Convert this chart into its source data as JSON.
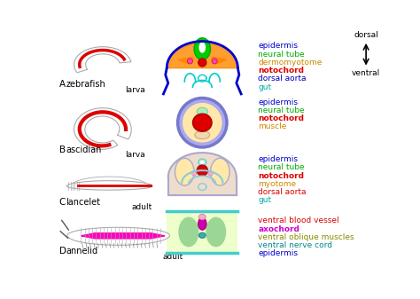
{
  "bg_color": "#ffffff",
  "legend_groups": [
    {
      "items": [
        {
          "text": "epidermis",
          "color": "#0000cc",
          "bold": false
        },
        {
          "text": "neural tube",
          "color": "#00aa00",
          "bold": false
        },
        {
          "text": "dermomyotome",
          "color": "#cc8800",
          "bold": false
        },
        {
          "text": "notochord",
          "color": "#dd0000",
          "bold": true
        },
        {
          "text": "dorsal aorta",
          "color": "#0000bb",
          "bold": false
        },
        {
          "text": "gut",
          "color": "#00aaaa",
          "bold": false
        }
      ]
    },
    {
      "items": [
        {
          "text": "epidermis",
          "color": "#0000cc",
          "bold": false
        },
        {
          "text": "neural tube",
          "color": "#00aa00",
          "bold": false
        },
        {
          "text": "notochord",
          "color": "#dd0000",
          "bold": true
        },
        {
          "text": "muscle",
          "color": "#cc8800",
          "bold": false
        }
      ]
    },
    {
      "items": [
        {
          "text": "epidermis",
          "color": "#0000cc",
          "bold": false
        },
        {
          "text": "neural tube",
          "color": "#00aa00",
          "bold": false
        },
        {
          "text": "notochord",
          "color": "#dd0000",
          "bold": true
        },
        {
          "text": "myotome",
          "color": "#cc8800",
          "bold": false
        },
        {
          "text": "dorsal aorta",
          "color": "#dd0000",
          "bold": false
        },
        {
          "text": "gut",
          "color": "#00aaaa",
          "bold": false
        }
      ]
    },
    {
      "items": [
        {
          "text": "ventral blood vessel",
          "color": "#dd0000",
          "bold": false
        },
        {
          "text": "axochord",
          "color": "#cc00cc",
          "bold": true
        },
        {
          "text": "ventral oblique muscles",
          "color": "#888800",
          "bold": false
        },
        {
          "text": "ventral nerve cord",
          "color": "#008888",
          "bold": false
        },
        {
          "text": "epidermis",
          "color": "#0000cc",
          "bold": false
        }
      ]
    }
  ]
}
